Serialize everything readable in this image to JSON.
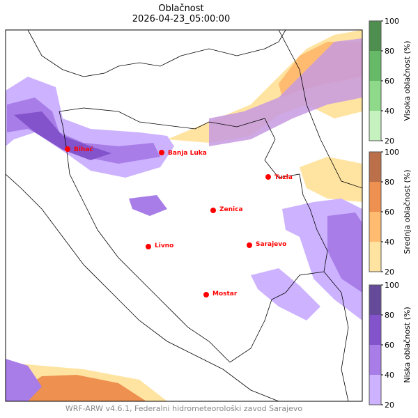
{
  "title": "Oblačnost",
  "timestamp": "2026-04-23_05:00:00",
  "footer": "WRF-ARW v4.6.1, Federalni hidrometeorološki zavod Sarajevo",
  "cities": [
    {
      "name": "Bihać"
    },
    {
      "name": "Banja Luka"
    },
    {
      "name": "Tuzla"
    },
    {
      "name": "Zenica"
    },
    {
      "name": "Livno"
    },
    {
      "name": "Sarajevo"
    },
    {
      "name": "Mostar"
    }
  ],
  "city_color": "#ff0000",
  "colorbars": [
    {
      "label": "Visoka oblačnost (%)",
      "ticks": [
        "100",
        "80",
        "60",
        "40",
        "20"
      ],
      "colors": [
        "#c6f2c0",
        "#8fd98a",
        "#66b966",
        "#4e8e4e"
      ]
    },
    {
      "label": "Srednja oblačnost (%)",
      "ticks": [
        "100",
        "80",
        "60",
        "40",
        "20"
      ],
      "colors": [
        "#ffe3a0",
        "#ffbb70",
        "#ee9050",
        "#bb704a"
      ]
    },
    {
      "label": "Niska oblačnost (%)",
      "ticks": [
        "100",
        "80",
        "60",
        "40",
        "20"
      ],
      "colors": [
        "#cdb3ff",
        "#a87de8",
        "#8353cc",
        "#644a98"
      ]
    }
  ]
}
